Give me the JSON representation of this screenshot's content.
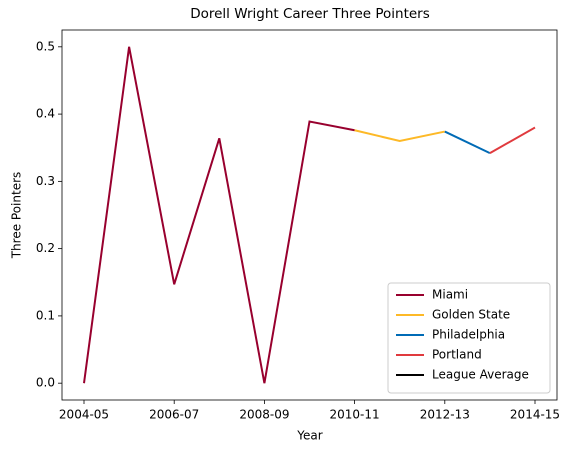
{
  "chart_data": {
    "type": "line",
    "title": "Dorell Wright Career Three Pointers",
    "xlabel": "Year",
    "ylabel": "Three Pointers",
    "categories": [
      "2004-05",
      null,
      "2006-07",
      null,
      "2008-09",
      null,
      "2010-11",
      null,
      "2012-13",
      null,
      "2014-15"
    ],
    "series": [
      {
        "name": "Miami",
        "color": "#98002e",
        "values": [
          0.0,
          0.5,
          0.147,
          0.364,
          0.0,
          0.389,
          0.376,
          null,
          null,
          null,
          null
        ]
      },
      {
        "name": "Golden State",
        "color": "#fdb927",
        "values": [
          null,
          null,
          null,
          null,
          null,
          null,
          0.376,
          0.36,
          0.374,
          null,
          null
        ]
      },
      {
        "name": "Philadelphia",
        "color": "#006bb6",
        "values": [
          null,
          null,
          null,
          null,
          null,
          null,
          null,
          null,
          0.374,
          0.342,
          null
        ]
      },
      {
        "name": "Portland",
        "color": "#e03a3e",
        "values": [
          null,
          null,
          null,
          null,
          null,
          null,
          null,
          null,
          null,
          0.342,
          0.38
        ]
      },
      {
        "name": "League Average",
        "color": "#000000",
        "values": [
          null,
          null,
          null,
          null,
          null,
          null,
          null,
          null,
          null,
          null,
          null
        ]
      }
    ],
    "ylim": [
      -0.025,
      0.525
    ],
    "yticks": [
      {
        "value": 0,
        "label": "0.0"
      },
      0.1,
      0.2,
      0.3,
      0.4,
      0.5
    ],
    "legend": "lower right",
    "grid": false
  }
}
